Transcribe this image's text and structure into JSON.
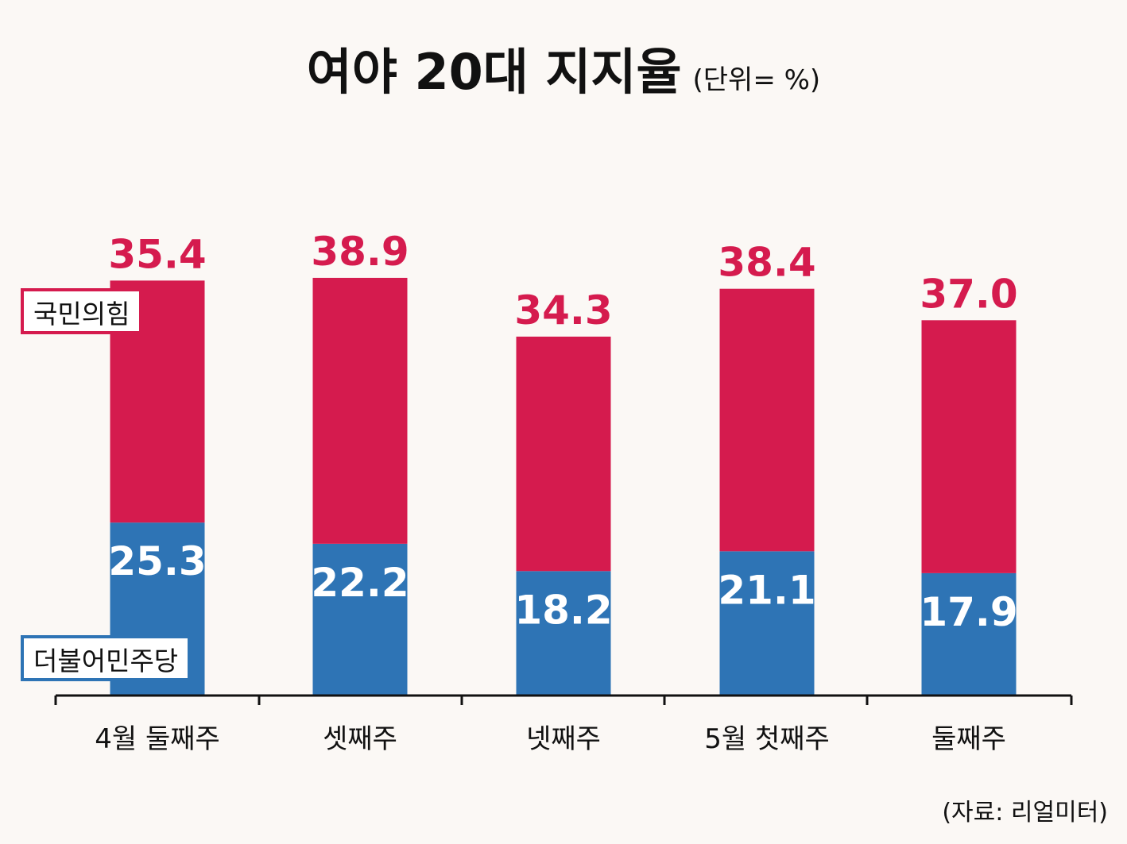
{
  "title": "여야 20대 지지율",
  "unit": "(단위= %)",
  "source": "(자료: 리얼미터)",
  "colors": {
    "ppp": "#d51b4e",
    "dp": "#2e74b5",
    "background": "#fbf8f5"
  },
  "chart_data": {
    "type": "bar",
    "stacked": true,
    "categories": [
      "4월 둘째주",
      "셋째주",
      "넷째주",
      "5월 첫째주",
      "둘째주"
    ],
    "series": [
      {
        "name": "더불어민주당",
        "color": "#2e74b5",
        "values": [
          25.3,
          22.2,
          18.2,
          21.1,
          17.9
        ]
      },
      {
        "name": "국민의힘",
        "color": "#d51b4e",
        "values": [
          35.4,
          38.9,
          34.3,
          38.4,
          37.0
        ]
      }
    ],
    "value_labels": {
      "dp": [
        "25.3",
        "22.2",
        "18.2",
        "21.1",
        "17.9"
      ],
      "ppp": [
        "35.4",
        "38.9",
        "34.3",
        "38.4",
        "37.0"
      ]
    },
    "grid": false,
    "legend_placement": "left"
  }
}
